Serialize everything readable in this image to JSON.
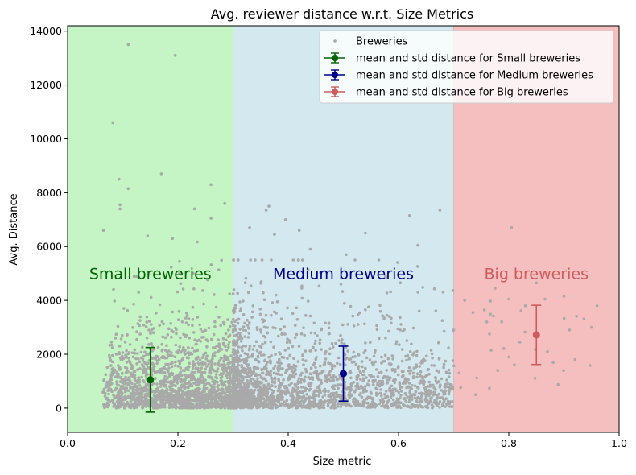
{
  "chart_data": {
    "type": "scatter",
    "title": "Avg. reviewer distance w.r.t. Size Metrics",
    "xlabel": "Size metric",
    "ylabel": "Avg. Distance",
    "xlim": [
      0.0,
      1.0
    ],
    "ylim": [
      -900,
      14200
    ],
    "x_ticks": [
      0.0,
      0.2,
      0.4,
      0.6,
      0.8,
      1.0
    ],
    "x_tick_labels": [
      "0.0",
      "0.2",
      "0.4",
      "0.6",
      "0.8",
      "1.0"
    ],
    "y_ticks": [
      0,
      2000,
      4000,
      6000,
      8000,
      10000,
      12000,
      14000
    ],
    "y_tick_labels": [
      "0",
      "2000",
      "4000",
      "6000",
      "8000",
      "10000",
      "12000",
      "14000"
    ],
    "grid": false,
    "legend_position": "top-right",
    "regions": [
      {
        "name": "Small breweries",
        "x0": 0.0,
        "x1": 0.3,
        "fill": "#c5f5c5",
        "text_color": "#006400",
        "label_y": 5000
      },
      {
        "name": "Medium breweries",
        "x0": 0.3,
        "x1": 0.7,
        "fill": "#d3e9ef",
        "text_color": "#00008b",
        "label_y": 5000
      },
      {
        "name": "Big breweries",
        "x0": 0.7,
        "x1": 1.0,
        "fill": "#f5bfc0",
        "text_color": "#cd5c5c",
        "label_y": 5000
      }
    ],
    "scatter": {
      "name": "Breweries",
      "color": "#a9a9a9",
      "highlight_points": [
        {
          "x": 0.11,
          "y": 13500
        },
        {
          "x": 0.195,
          "y": 13100
        },
        {
          "x": 0.082,
          "y": 10600
        },
        {
          "x": 0.17,
          "y": 8700
        },
        {
          "x": 0.093,
          "y": 8500
        },
        {
          "x": 0.11,
          "y": 8150
        },
        {
          "x": 0.26,
          "y": 8300
        },
        {
          "x": 0.095,
          "y": 7550
        },
        {
          "x": 0.095,
          "y": 7400
        },
        {
          "x": 0.285,
          "y": 7600
        },
        {
          "x": 0.26,
          "y": 7050
        },
        {
          "x": 0.23,
          "y": 7400
        },
        {
          "x": 0.065,
          "y": 6600
        },
        {
          "x": 0.145,
          "y": 6400
        },
        {
          "x": 0.19,
          "y": 6300
        },
        {
          "x": 0.365,
          "y": 7500
        },
        {
          "x": 0.36,
          "y": 7350
        },
        {
          "x": 0.395,
          "y": 7000
        },
        {
          "x": 0.33,
          "y": 6700
        },
        {
          "x": 0.375,
          "y": 6450
        },
        {
          "x": 0.42,
          "y": 6600
        },
        {
          "x": 0.54,
          "y": 6500
        },
        {
          "x": 0.62,
          "y": 7150
        },
        {
          "x": 0.675,
          "y": 7350
        },
        {
          "x": 0.635,
          "y": 6050
        },
        {
          "x": 0.44,
          "y": 5900
        },
        {
          "x": 0.505,
          "y": 5700
        },
        {
          "x": 0.805,
          "y": 6700
        },
        {
          "x": 0.96,
          "y": 3800
        },
        {
          "x": 0.92,
          "y": 1800
        },
        {
          "x": 0.9,
          "y": 4150
        },
        {
          "x": 0.85,
          "y": 4650
        },
        {
          "x": 0.8,
          "y": 4050
        },
        {
          "x": 0.87,
          "y": 2100
        },
        {
          "x": 0.765,
          "y": 2750
        },
        {
          "x": 0.72,
          "y": 4000
        },
        {
          "x": 0.775,
          "y": 4450
        },
        {
          "x": 0.7,
          "y": 2900
        },
        {
          "x": 0.91,
          "y": 2900
        },
        {
          "x": 0.735,
          "y": 3550
        },
        {
          "x": 0.78,
          "y": 1400
        },
        {
          "x": 0.8,
          "y": 1900
        },
        {
          "x": 0.83,
          "y": 3800
        },
        {
          "x": 0.76,
          "y": 3200
        },
        {
          "x": 0.74,
          "y": 500
        },
        {
          "x": 0.71,
          "y": 1300
        },
        {
          "x": 0.82,
          "y": 2450
        },
        {
          "x": 0.95,
          "y": 3000
        }
      ]
    },
    "series": [
      {
        "name": "mean and std distance for Small breweries",
        "color": "#006400",
        "x": 0.15,
        "mean": 1050,
        "std": 1200
      },
      {
        "name": "mean and std distance for Medium breweries",
        "color": "#00008b",
        "x": 0.5,
        "mean": 1280,
        "std": 1020
      },
      {
        "name": "mean and std distance for Big breweries",
        "color": "#cd5c5c",
        "x": 0.85,
        "mean": 2720,
        "std": 1100
      }
    ]
  }
}
